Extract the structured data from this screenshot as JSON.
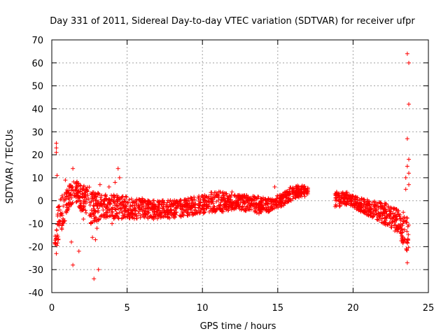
{
  "chart_data": {
    "type": "scatter",
    "title": "Day 331 of 2011, Sidereal Day-to-day VTEC variation (SDTVAR) for receiver ufpr",
    "xlabel": "GPS time / hours",
    "ylabel": "SDTVAR / TECUs",
    "xlim": [
      0,
      25
    ],
    "ylim": [
      -40,
      70
    ],
    "xticks": [
      0,
      5,
      10,
      15,
      20,
      25
    ],
    "yticks": [
      -40,
      -30,
      -20,
      -10,
      0,
      10,
      20,
      30,
      40,
      50,
      60,
      70
    ],
    "grid": true,
    "marker": "+",
    "color": "#ff0000",
    "series": [
      {
        "name": "SDTVAR",
        "bands": [
          {
            "x": [
              0.2,
              0.4
            ],
            "y": [
              [
                -22,
                -15
              ],
              [
                -20,
                -5
              ]
            ]
          },
          {
            "x": [
              0.4,
              0.8
            ],
            "y": [
              [
                -18,
                -2
              ],
              [
                -10,
                4
              ]
            ]
          },
          {
            "x": [
              0.8,
              1.2
            ],
            "y": [
              [
                -10,
                4
              ],
              [
                -3,
                7
              ]
            ]
          },
          {
            "x": [
              1.2,
              1.8
            ],
            "y": [
              [
                -2,
                8
              ],
              [
                0,
                9
              ]
            ]
          },
          {
            "x": [
              1.8,
              2.5
            ],
            "y": [
              [
                -4,
                8
              ],
              [
                -6,
                6
              ]
            ]
          },
          {
            "x": [
              2.5,
              3.5
            ],
            "y": [
              [
                -10,
                4
              ],
              [
                -8,
                3
              ]
            ]
          },
          {
            "x": [
              3.5,
              5.0
            ],
            "y": [
              [
                -8,
                3
              ],
              [
                -8,
                2
              ]
            ]
          },
          {
            "x": [
              5.0,
              7.0
            ],
            "y": [
              [
                -8,
                1
              ],
              [
                -8,
                0
              ]
            ]
          },
          {
            "x": [
              7.0,
              9.0
            ],
            "y": [
              [
                -8,
                0
              ],
              [
                -7,
                1
              ]
            ]
          },
          {
            "x": [
              9.0,
              10.5
            ],
            "y": [
              [
                -7,
                1
              ],
              [
                -5,
                3
              ]
            ]
          },
          {
            "x": [
              10.5,
              12.0
            ],
            "y": [
              [
                -5,
                4
              ],
              [
                -5,
                4
              ]
            ]
          },
          {
            "x": [
              12.0,
              13.5
            ],
            "y": [
              [
                -4,
                3
              ],
              [
                -5,
                2
              ]
            ]
          },
          {
            "x": [
              13.5,
              14.5
            ],
            "y": [
              [
                -6,
                2
              ],
              [
                -5,
                1
              ]
            ]
          },
          {
            "x": [
              14.5,
              15.5
            ],
            "y": [
              [
                -4,
                1
              ],
              [
                -2,
                4
              ]
            ]
          },
          {
            "x": [
              15.5,
              16.3
            ],
            "y": [
              [
                -1,
                5
              ],
              [
                1,
                7
              ]
            ]
          },
          {
            "x": [
              16.3,
              17.0
            ],
            "y": [
              [
                1,
                7
              ],
              [
                2,
                6
              ]
            ]
          },
          {
            "x": [
              18.8,
              19.6
            ],
            "y": [
              [
                -3,
                4
              ],
              [
                -2,
                4
              ]
            ]
          },
          {
            "x": [
              19.6,
              20.5
            ],
            "y": [
              [
                -2,
                3
              ],
              [
                -5,
                1
              ]
            ]
          },
          {
            "x": [
              20.5,
              21.5
            ],
            "y": [
              [
                -5,
                1
              ],
              [
                -8,
                0
              ]
            ]
          },
          {
            "x": [
              21.5,
              22.5
            ],
            "y": [
              [
                -8,
                0
              ],
              [
                -12,
                -2
              ]
            ]
          },
          {
            "x": [
              22.5,
              23.2
            ],
            "y": [
              [
                -12,
                -2
              ],
              [
                -15,
                -5
              ]
            ]
          },
          {
            "x": [
              23.2,
              23.7
            ],
            "y": [
              [
                -18,
                -5
              ],
              [
                -25,
                -5
              ]
            ]
          }
        ],
        "outliers": [
          [
            0.3,
            25
          ],
          [
            0.3,
            23
          ],
          [
            0.3,
            21
          ],
          [
            0.35,
            11
          ],
          [
            0.3,
            -23
          ],
          [
            0.9,
            9
          ],
          [
            1.0,
            2
          ],
          [
            1.3,
            -18
          ],
          [
            1.4,
            -28
          ],
          [
            1.4,
            14
          ],
          [
            1.8,
            -22
          ],
          [
            2.1,
            -8
          ],
          [
            2.3,
            5
          ],
          [
            2.6,
            -10
          ],
          [
            2.7,
            -16
          ],
          [
            2.8,
            -34
          ],
          [
            2.9,
            -17
          ],
          [
            3.0,
            -12
          ],
          [
            3.1,
            -30
          ],
          [
            3.2,
            7
          ],
          [
            3.6,
            1
          ],
          [
            3.8,
            6
          ],
          [
            4.0,
            -10
          ],
          [
            4.2,
            8
          ],
          [
            4.4,
            14
          ],
          [
            4.5,
            10
          ],
          [
            6.0,
            1
          ],
          [
            14.8,
            6
          ],
          [
            23.6,
            64
          ],
          [
            23.7,
            60
          ],
          [
            23.7,
            42
          ],
          [
            23.6,
            27
          ],
          [
            23.7,
            18
          ],
          [
            23.6,
            15
          ],
          [
            23.5,
            10
          ],
          [
            23.7,
            7
          ],
          [
            23.6,
            -27
          ],
          [
            22.5,
            -3
          ],
          [
            23.3,
            -10
          ],
          [
            23.5,
            5
          ],
          [
            23.7,
            12
          ]
        ]
      }
    ]
  }
}
